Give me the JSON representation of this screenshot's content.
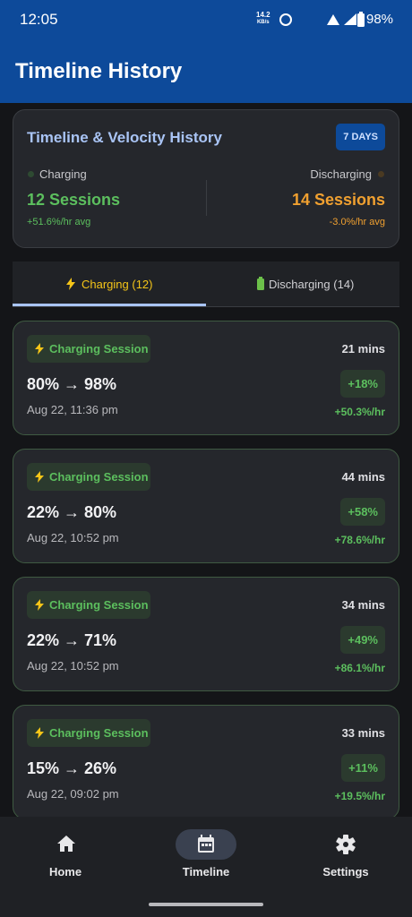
{
  "status_bar": {
    "time": "12:05",
    "network_speed": "14.2",
    "network_unit": "KB/s",
    "battery": "98%"
  },
  "app_bar": {
    "title": "Timeline History"
  },
  "summary": {
    "title": "Timeline & Velocity History",
    "badge": "7 DAYS",
    "charging": {
      "label": "Charging",
      "sessions": "12 Sessions",
      "avg": "+51.6%/hr avg"
    },
    "discharging": {
      "label": "Discharging",
      "sessions": "14 Sessions",
      "avg": "-3.0%/hr avg"
    }
  },
  "tabs": [
    {
      "label": "Charging (12)"
    },
    {
      "label": "Discharging (14)"
    }
  ],
  "sessions": [
    {
      "tag": "Charging Session",
      "duration": "21 mins",
      "range": "80% → 98%",
      "time": "Aug 22, 11:36 pm",
      "change": "+18%",
      "rate": "+50.3%/hr"
    },
    {
      "tag": "Charging Session",
      "duration": "44 mins",
      "range": "22% → 80%",
      "time": "Aug 22, 10:52 pm",
      "change": "+58%",
      "rate": "+78.6%/hr"
    },
    {
      "tag": "Charging Session",
      "duration": "34 mins",
      "range": "22% → 71%",
      "time": "Aug 22, 10:52 pm",
      "change": "+49%",
      "rate": "+86.1%/hr"
    },
    {
      "tag": "Charging Session",
      "duration": "33 mins",
      "range": "15% → 26%",
      "time": "Aug 22, 09:02 pm",
      "change": "+11%",
      "rate": "+19.5%/hr"
    }
  ],
  "nav": [
    {
      "label": "Home"
    },
    {
      "label": "Timeline"
    },
    {
      "label": "Settings"
    }
  ]
}
